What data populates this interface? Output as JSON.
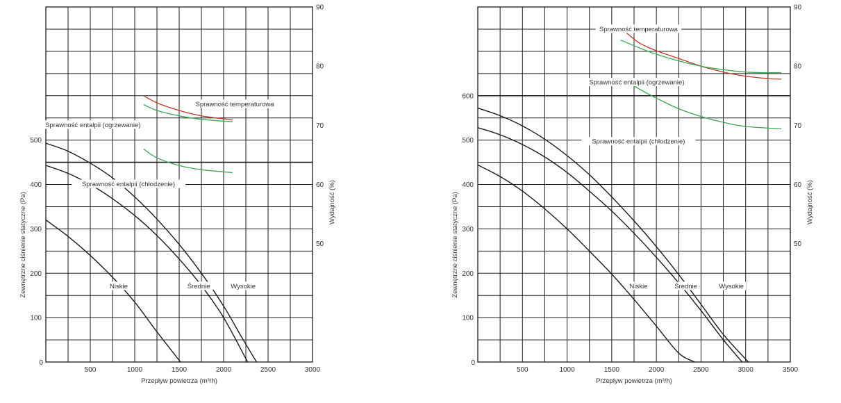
{
  "chart_data": [
    {
      "type": "line",
      "xlabel": "Przepływ powietrza (m³/h)",
      "ylabel": "Zewnętrzne ciśnienie statyczne (Pa)",
      "y2label": "Wydajność (%)",
      "xlim": [
        0,
        3000
      ],
      "ylim": [
        0,
        800
      ],
      "y2lim": [
        30,
        90
      ],
      "x_ticks": [
        500,
        1000,
        1500,
        2000,
        2500,
        3000
      ],
      "y_ticks": [
        0,
        100,
        200,
        300,
        400,
        500
      ],
      "y2_ticks": [
        50,
        60,
        70,
        80,
        90
      ],
      "heavy_y": 450,
      "grid": true,
      "pressure_series": [
        {
          "name": "Niskie",
          "color": "#1a1a1a",
          "points": [
            [
              0,
              320
            ],
            [
              250,
              283
            ],
            [
              500,
              240
            ],
            [
              750,
              191
            ],
            [
              1000,
              135
            ],
            [
              1250,
              68
            ],
            [
              1515,
              0
            ]
          ]
        },
        {
          "name": "Średnie",
          "color": "#1a1a1a",
          "points": [
            [
              0,
              443
            ],
            [
              250,
              425
            ],
            [
              500,
              400
            ],
            [
              750,
              368
            ],
            [
              1000,
              330
            ],
            [
              1250,
              285
            ],
            [
              1500,
              232
            ],
            [
              1750,
              172
            ],
            [
              2000,
              100
            ],
            [
              2270,
              0
            ]
          ]
        },
        {
          "name": "Wysokie",
          "color": "#1a1a1a",
          "points": [
            [
              0,
              493
            ],
            [
              250,
              475
            ],
            [
              500,
              448
            ],
            [
              750,
              415
            ],
            [
              1000,
              372
            ],
            [
              1250,
              322
            ],
            [
              1500,
              265
            ],
            [
              1750,
              200
            ],
            [
              2000,
              126
            ],
            [
              2200,
              57
            ],
            [
              2370,
              0
            ]
          ]
        }
      ],
      "efficiency_series": [
        {
          "name": "Sprawność temperaturowa",
          "color": "#c0392b",
          "points": [
            [
              1100,
              75
            ],
            [
              1250,
              73.8
            ],
            [
              1500,
              72.5
            ],
            [
              1750,
              71.6
            ],
            [
              2100,
              70.9
            ]
          ]
        },
        {
          "name": "Sprawność entalpii (ogrzewanie)",
          "color": "#3aa655",
          "points": [
            [
              1100,
              73.5
            ],
            [
              1250,
              72.5
            ],
            [
              1500,
              71.6
            ],
            [
              1750,
              71.0
            ],
            [
              2100,
              70.6
            ]
          ]
        },
        {
          "name": "Sprawność entalpii (chłodzenie)",
          "color": "#3aa655",
          "points": [
            [
              1100,
              66
            ],
            [
              1250,
              64.5
            ],
            [
              1500,
              63.2
            ],
            [
              1750,
              62.5
            ],
            [
              2100,
              62.0
            ]
          ]
        }
      ],
      "curve_labels": [
        {
          "text": "Niskie",
          "x": 820,
          "y": 170
        },
        {
          "text": "Średnie",
          "x": 1720,
          "y": 170
        },
        {
          "text": "Wysokie",
          "x": 2220,
          "y": 170
        }
      ],
      "efficiency_labels": [
        {
          "text": "Sprawność temperaturowa",
          "x": 2125,
          "y2": 73.5
        },
        {
          "text": "Sprawność entalpii (ogrzewanie)",
          "x": 530,
          "y2": 70
        },
        {
          "text": "Sprawność entalpii (chłodzenie)",
          "x": 930,
          "y2": 60
        }
      ]
    },
    {
      "type": "line",
      "xlabel": "Przepływ powietrza (m³/h)",
      "ylabel": "Zewnętrzne ciśnienie statyczne (Pa)",
      "y2label": "Wydajność (%)",
      "xlim": [
        0,
        3500
      ],
      "ylim": [
        0,
        800
      ],
      "y2lim": [
        30,
        90
      ],
      "x_ticks": [
        500,
        1000,
        1500,
        2000,
        2500,
        3000,
        3500
      ],
      "y_ticks": [
        0,
        100,
        200,
        300,
        400,
        500,
        600
      ],
      "y2_ticks": [
        50,
        60,
        70,
        80,
        90
      ],
      "heavy_y": 600,
      "grid": true,
      "pressure_series": [
        {
          "name": "Niskie",
          "color": "#1a1a1a",
          "points": [
            [
              0,
              444
            ],
            [
              250,
              418
            ],
            [
              500,
              385
            ],
            [
              750,
              345
            ],
            [
              1000,
              300
            ],
            [
              1250,
              250
            ],
            [
              1500,
              198
            ],
            [
              1750,
              141
            ],
            [
              2000,
              81
            ],
            [
              2250,
              20
            ],
            [
              2430,
              0
            ]
          ]
        },
        {
          "name": "Średnie",
          "color": "#1a1a1a",
          "points": [
            [
              0,
              528
            ],
            [
              250,
              512
            ],
            [
              500,
              490
            ],
            [
              750,
              462
            ],
            [
              1000,
              427
            ],
            [
              1250,
              385
            ],
            [
              1500,
              340
            ],
            [
              1750,
              290
            ],
            [
              2000,
              236
            ],
            [
              2250,
              178
            ],
            [
              2500,
              116
            ],
            [
              2750,
              50
            ],
            [
              2960,
              0
            ]
          ]
        },
        {
          "name": "Wysokie",
          "color": "#1a1a1a",
          "points": [
            [
              0,
              572
            ],
            [
              250,
              555
            ],
            [
              500,
              532
            ],
            [
              750,
              502
            ],
            [
              1000,
              465
            ],
            [
              1250,
              422
            ],
            [
              1500,
              372
            ],
            [
              1750,
              318
            ],
            [
              2000,
              260
            ],
            [
              2250,
              197
            ],
            [
              2500,
              130
            ],
            [
              2750,
              62
            ],
            [
              3030,
              0
            ]
          ]
        }
      ],
      "efficiency_series": [
        {
          "name": "Sprawność temperaturowa",
          "color": "#c0392b",
          "points": [
            [
              1600,
              86.5
            ],
            [
              1800,
              84.0
            ],
            [
              2000,
              82.6
            ],
            [
              2250,
              81.3
            ],
            [
              2500,
              80.0
            ],
            [
              2750,
              79.0
            ],
            [
              3000,
              78.3
            ],
            [
              3250,
              77.9
            ],
            [
              3400,
              77.8
            ]
          ]
        },
        {
          "name": "Sprawność entalpii (ogrzewanie)",
          "color": "#3aa655",
          "points": [
            [
              1600,
              84.4
            ],
            [
              2000,
              82.0
            ],
            [
              2500,
              80.0
            ],
            [
              3000,
              79.0
            ],
            [
              3400,
              78.9
            ]
          ]
        },
        {
          "name": "Sprawność entalpii (chłodzenie)",
          "color": "#3aa655",
          "points": [
            [
              1600,
              78
            ],
            [
              1800,
              76.2
            ],
            [
              2000,
              74.6
            ],
            [
              2250,
              72.8
            ],
            [
              2500,
              71.5
            ],
            [
              2750,
              70.5
            ],
            [
              3000,
              69.8
            ],
            [
              3400,
              69.4
            ]
          ]
        }
      ],
      "curve_labels": [
        {
          "text": "Niskie",
          "x": 1800,
          "y": 170
        },
        {
          "text": "Średnie",
          "x": 2330,
          "y": 170
        },
        {
          "text": "Wysokie",
          "x": 2840,
          "y": 170
        }
      ],
      "efficiency_labels": [
        {
          "text": "Sprawność temperaturowa",
          "x": 1800,
          "y2": 86.2
        },
        {
          "text": "Sprawność entalpii (ogrzewanie)",
          "x": 1780,
          "y2": 77.2
        },
        {
          "text": "Sprawność entalpii (chłodzenie)",
          "x": 1800,
          "y2": 67.2
        }
      ]
    }
  ]
}
